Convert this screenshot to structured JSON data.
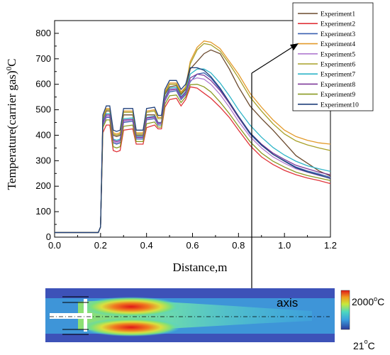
{
  "chart_data": {
    "type": "line",
    "xlabel": "Distance,m",
    "ylabel": "Temperature(carrier gas)",
    "ylabel_unit": "0",
    "ylabel_unit_tail": "C",
    "xlim": [
      0.0,
      1.2
    ],
    "ylim": [
      0,
      850
    ],
    "xticks": [
      "0.0",
      "0.2",
      "0.4",
      "0.6",
      "0.8",
      "1.0",
      "1.2"
    ],
    "yticks": [
      "0",
      "100",
      "200",
      "300",
      "400",
      "500",
      "600",
      "700",
      "800"
    ],
    "grid": false,
    "legend_position": "top-right-outside",
    "x": [
      0.0,
      0.19,
      0.2,
      0.21,
      0.225,
      0.24,
      0.255,
      0.27,
      0.285,
      0.3,
      0.34,
      0.355,
      0.37,
      0.385,
      0.4,
      0.435,
      0.45,
      0.465,
      0.48,
      0.5,
      0.53,
      0.55,
      0.57,
      0.59,
      0.62,
      0.65,
      0.68,
      0.72,
      0.76,
      0.8,
      0.85,
      0.9,
      0.95,
      1.0,
      1.05,
      1.1,
      1.15,
      1.2
    ],
    "series": [
      {
        "name": "Experiment1",
        "color": "#6b4a2e",
        "values": [
          18,
          18,
          40,
          460,
          495,
          495,
          400,
          395,
          400,
          480,
          480,
          400,
          400,
          400,
          480,
          480,
          450,
          450,
          560,
          590,
          595,
          560,
          580,
          660,
          690,
          720,
          735,
          720,
          660,
          590,
          515,
          465,
          420,
          370,
          320,
          290,
          260,
          240
        ]
      },
      {
        "name": "Experiment2",
        "color": "#e0343a",
        "values": [
          18,
          18,
          40,
          410,
          440,
          440,
          340,
          335,
          340,
          420,
          425,
          365,
          365,
          365,
          430,
          440,
          425,
          425,
          510,
          540,
          545,
          515,
          540,
          590,
          585,
          565,
          545,
          510,
          470,
          420,
          360,
          315,
          285,
          262,
          245,
          232,
          222,
          210
        ]
      },
      {
        "name": "Experiment3",
        "color": "#3a5fb0",
        "values": [
          18,
          18,
          40,
          440,
          470,
          470,
          370,
          365,
          370,
          450,
          455,
          385,
          385,
          385,
          460,
          465,
          440,
          440,
          535,
          570,
          575,
          540,
          560,
          610,
          640,
          645,
          625,
          580,
          525,
          470,
          405,
          360,
          325,
          300,
          275,
          260,
          248,
          235
        ]
      },
      {
        "name": "Experiment4",
        "color": "#e39a2a",
        "values": [
          18,
          18,
          40,
          470,
          505,
          505,
          410,
          405,
          410,
          495,
          495,
          410,
          410,
          410,
          495,
          500,
          470,
          470,
          570,
          605,
          605,
          570,
          590,
          690,
          745,
          770,
          765,
          740,
          690,
          640,
          565,
          510,
          460,
          420,
          395,
          380,
          370,
          365
        ]
      },
      {
        "name": "Experiment5",
        "color": "#b07ad0",
        "values": [
          18,
          18,
          40,
          445,
          475,
          475,
          375,
          370,
          375,
          455,
          460,
          390,
          390,
          390,
          465,
          470,
          445,
          445,
          540,
          575,
          580,
          545,
          565,
          615,
          625,
          620,
          600,
          560,
          510,
          455,
          395,
          350,
          315,
          290,
          268,
          255,
          242,
          232
        ]
      },
      {
        "name": "Experiment6",
        "color": "#a8a028",
        "values": [
          18,
          18,
          40,
          465,
          500,
          500,
          405,
          400,
          405,
          490,
          490,
          405,
          405,
          405,
          490,
          495,
          465,
          465,
          565,
          600,
          600,
          565,
          585,
          680,
          735,
          760,
          755,
          730,
          680,
          625,
          550,
          495,
          445,
          405,
          378,
          362,
          350,
          340
        ]
      },
      {
        "name": "Experiment7",
        "color": "#2fb5c8",
        "values": [
          18,
          18,
          40,
          455,
          485,
          485,
          385,
          380,
          385,
          465,
          468,
          395,
          395,
          395,
          470,
          475,
          450,
          450,
          548,
          585,
          588,
          552,
          572,
          640,
          660,
          660,
          645,
          605,
          555,
          500,
          440,
          392,
          352,
          322,
          298,
          280,
          268,
          258
        ]
      },
      {
        "name": "Experiment8",
        "color": "#7f3a9a",
        "values": [
          18,
          18,
          40,
          450,
          480,
          480,
          380,
          375,
          380,
          460,
          462,
          392,
          392,
          392,
          468,
          472,
          448,
          448,
          544,
          580,
          582,
          548,
          568,
          625,
          640,
          635,
          615,
          575,
          525,
          470,
          410,
          365,
          330,
          305,
          282,
          268,
          255,
          245
        ]
      },
      {
        "name": "Experiment9",
        "color": "#8a9a22",
        "values": [
          18,
          18,
          40,
          430,
          460,
          460,
          355,
          350,
          355,
          435,
          440,
          375,
          375,
          375,
          445,
          452,
          432,
          432,
          522,
          555,
          558,
          528,
          550,
          598,
          600,
          590,
          570,
          530,
          485,
          435,
          375,
          330,
          298,
          275,
          255,
          242,
          232,
          222
        ]
      },
      {
        "name": "Experiment10",
        "color": "#1f3f7a",
        "values": [
          18,
          18,
          40,
          480,
          515,
          515,
          420,
          415,
          420,
          505,
          505,
          420,
          420,
          420,
          505,
          510,
          478,
          478,
          580,
          615,
          615,
          580,
          600,
          665,
          665,
          655,
          630,
          585,
          530,
          475,
          410,
          362,
          325,
          298,
          272,
          256,
          244,
          230
        ]
      }
    ]
  },
  "contour": {
    "axis_label": "axis",
    "colorbar_max_value": "2000",
    "colorbar_max_unit": "C",
    "colorbar_min_value": "21",
    "colorbar_min_unit": "C",
    "degree_mark": "o"
  }
}
